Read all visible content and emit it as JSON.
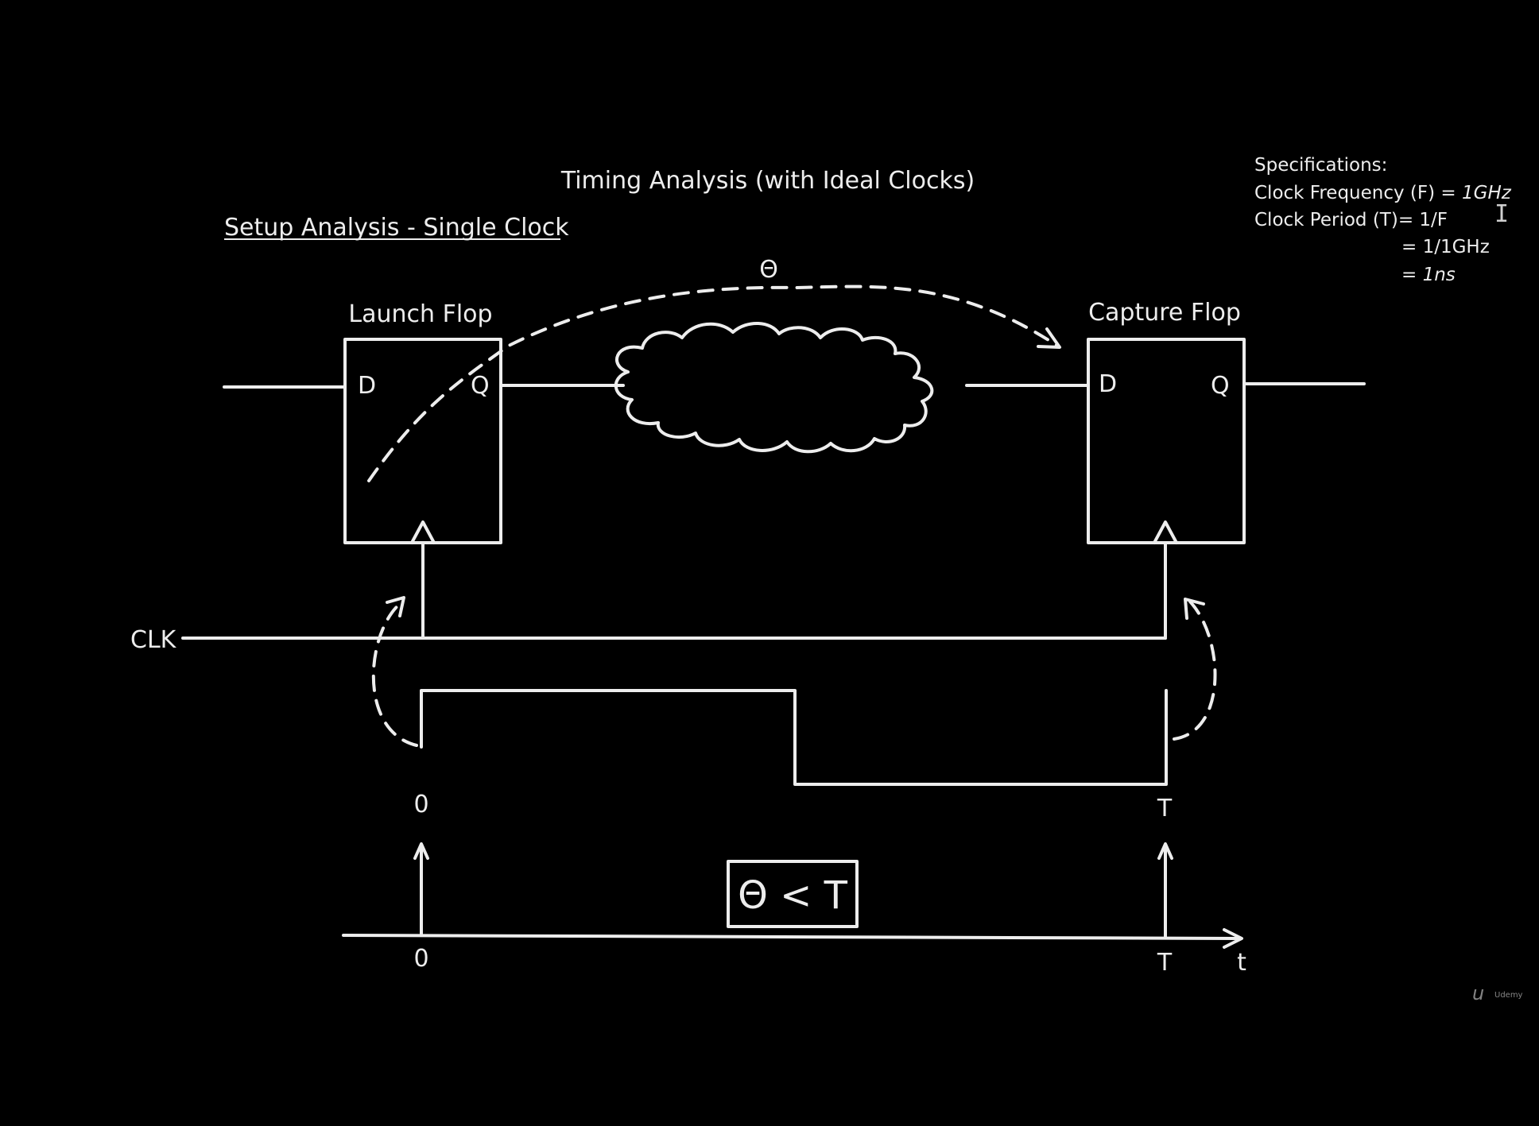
{
  "title": "Timing Analysis (with Ideal Clocks)",
  "subtitle": "Setup Analysis - Single Clock",
  "specs": {
    "heading": "Specifications:",
    "freq_label": "Clock Frequency (F) = ",
    "freq_value": "1GHz",
    "period_line": "Clock Period (T)= 1/F",
    "period_line2": "= 1/1GHz",
    "period_eq": "= ",
    "period_value": "1ns"
  },
  "launch_flop": {
    "label": "Launch Flop",
    "d": "D",
    "q": "Q"
  },
  "capture_flop": {
    "label": "Capture Flop",
    "d": "D",
    "q": "Q"
  },
  "clock_label": "CLK",
  "delay_symbol": "Θ",
  "waveform": {
    "start_label": "0",
    "end_label": "T"
  },
  "timeline": {
    "start_label": "0",
    "end_label": "T",
    "axis_label": "t"
  },
  "condition": "Θ < T",
  "watermark": "Udemy",
  "colors": {
    "background": "#000000",
    "foreground": "#ededed"
  }
}
